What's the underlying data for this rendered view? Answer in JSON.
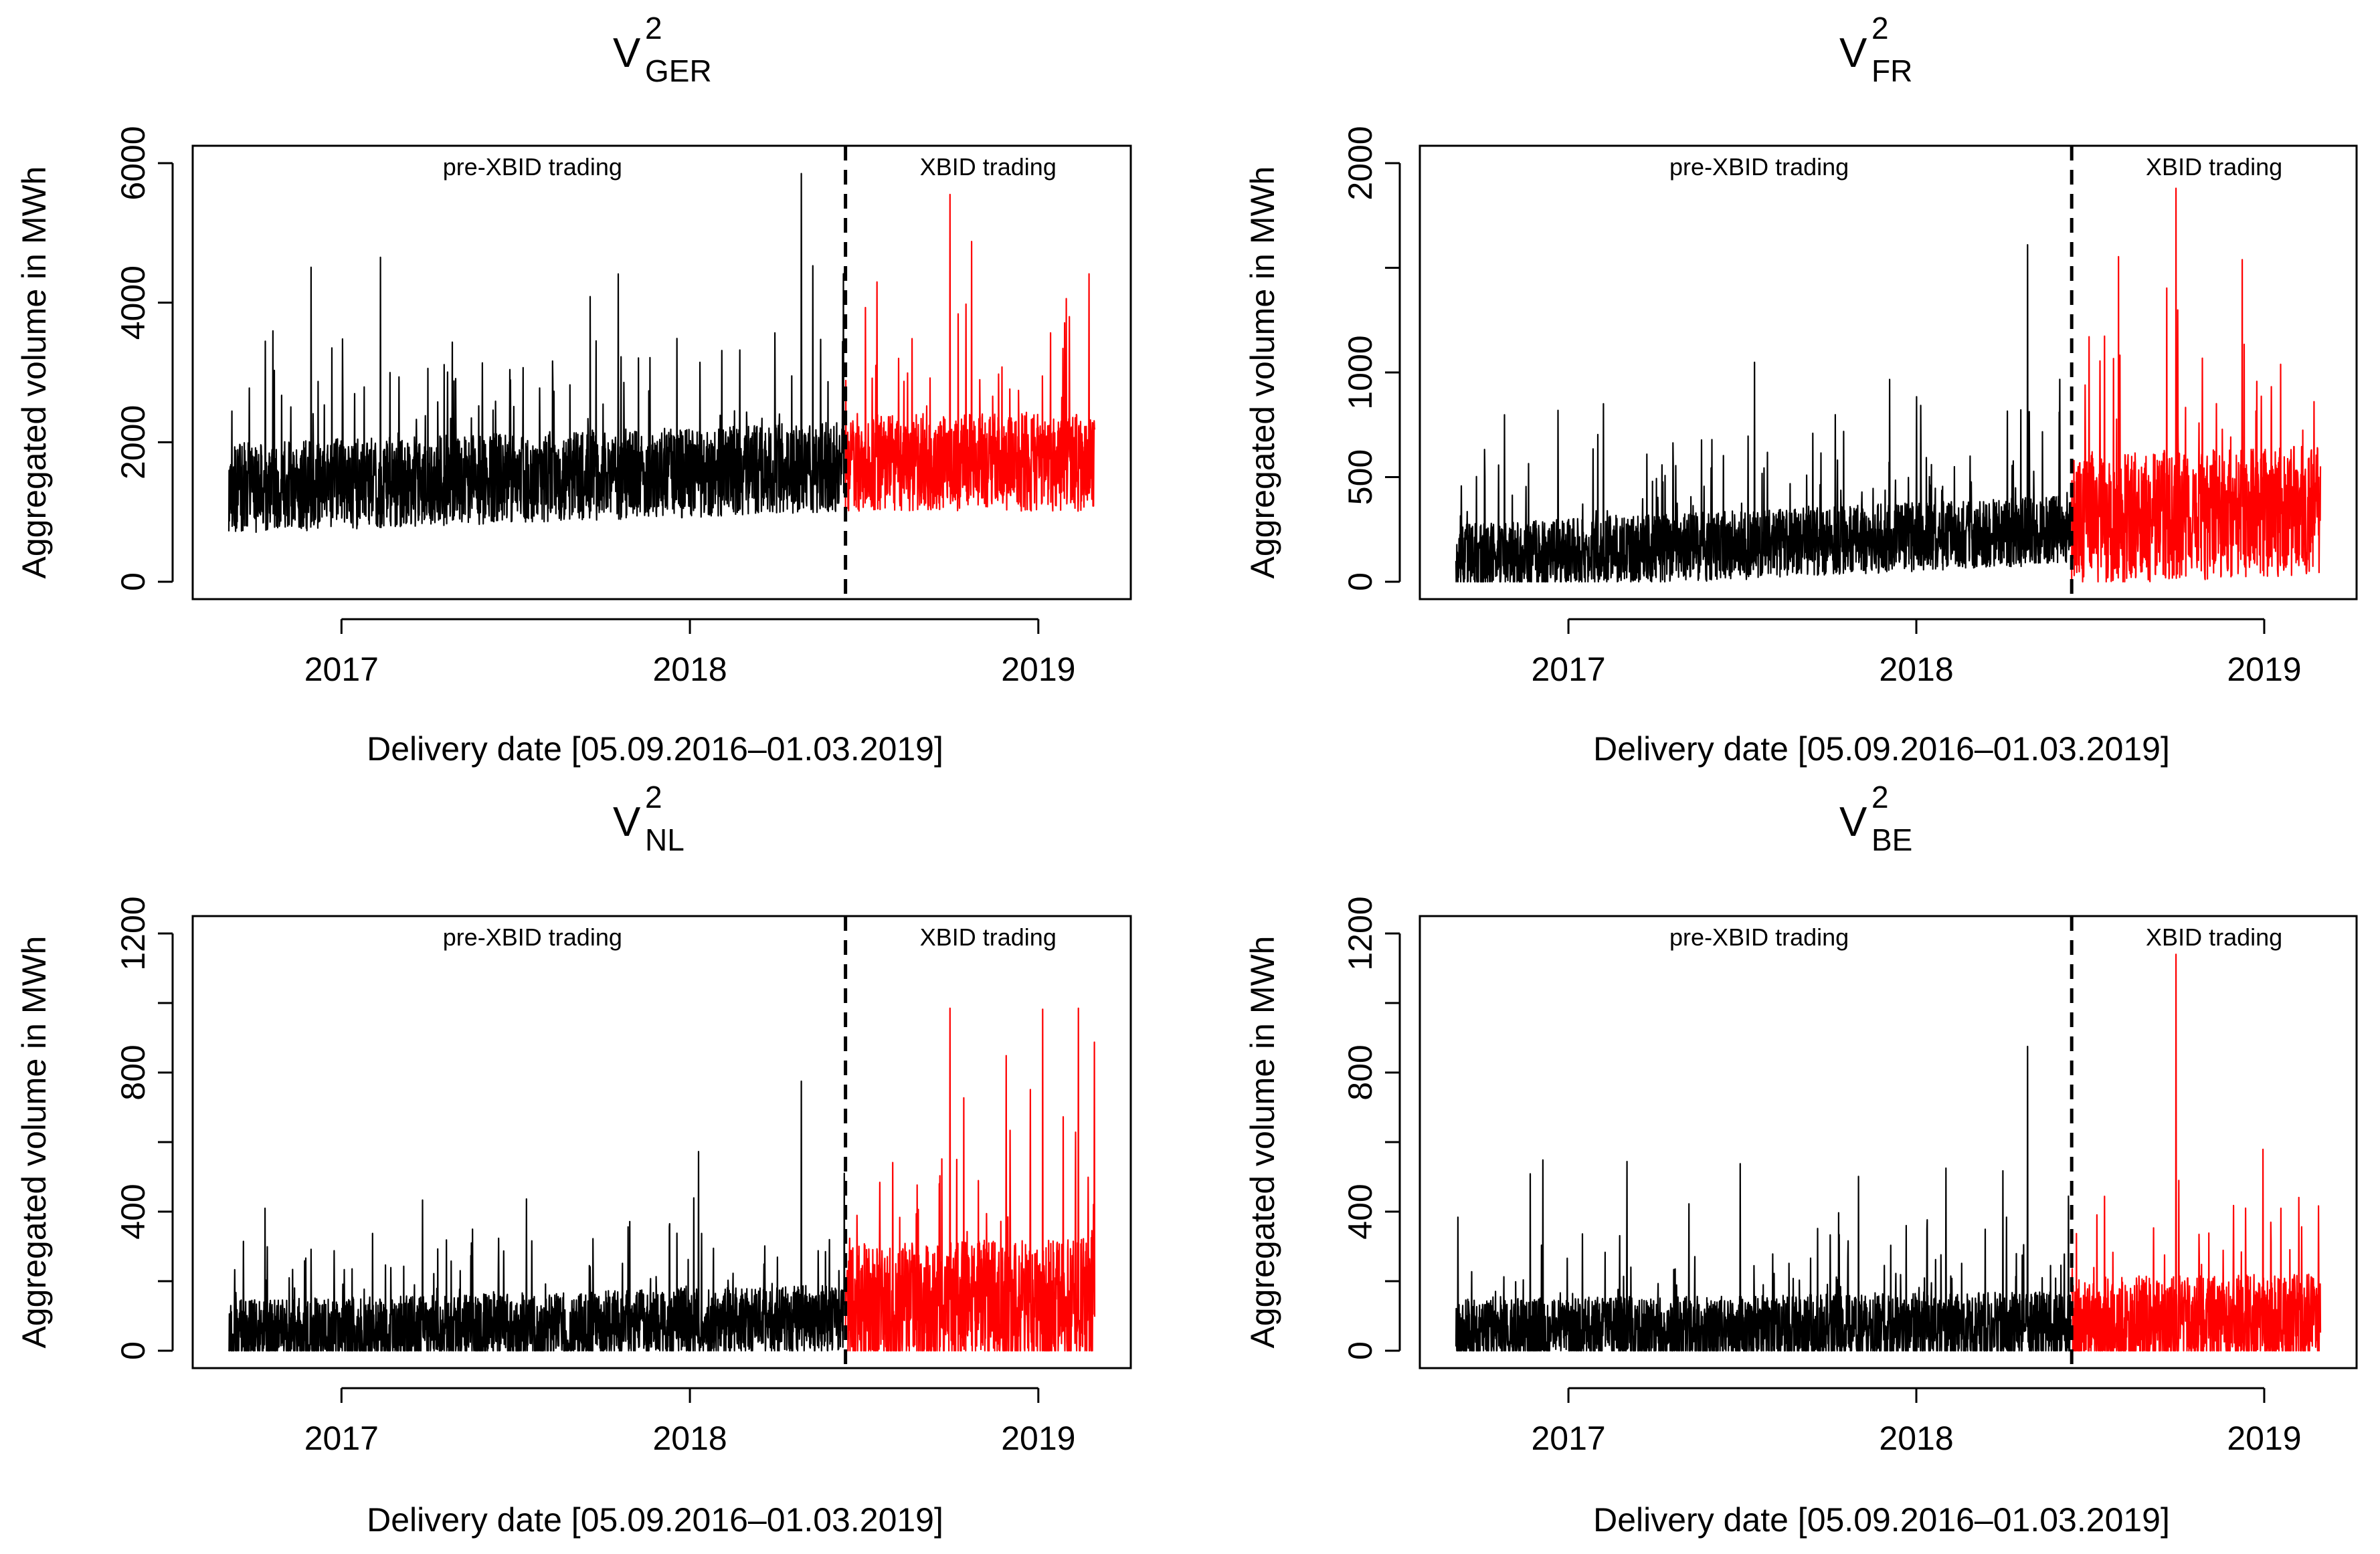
{
  "colors": {
    "pre_xbid": "#000000",
    "xbid": "#ff0000",
    "background": "#ffffff"
  },
  "chart_data": [
    {
      "type": "line",
      "title": "V",
      "title_superscript": "2",
      "title_subscript": "GER",
      "xlabel": "Delivery date [05.09.2016–01.03.2019]",
      "ylabel": "Aggregated volume in MWh",
      "xlim": [
        "2016-09-05",
        "2019-03-01"
      ],
      "ylim": [
        0,
        6000
      ],
      "yticks": [
        0,
        2000,
        4000,
        6000
      ],
      "yticklabels": [
        "0",
        "2000",
        "4000",
        "6000"
      ],
      "xticks": [
        "2017-01-01",
        "2018-01-01",
        "2019-01-01"
      ],
      "xticklabels": [
        "2017",
        "2018",
        "2019"
      ],
      "xbid_start": "2018-06-13",
      "annotations": {
        "pre": "pre-XBID trading",
        "post": "XBID trading"
      },
      "series": [
        {
          "name": "pre-XBID trading",
          "color": "#000000",
          "x_range": [
            "2016-09-05",
            "2018-06-12"
          ],
          "base_level": 1150,
          "trend_end": 1450,
          "spread": 1300,
          "peak": 5850
        },
        {
          "name": "XBID trading",
          "color": "#ff0000",
          "x_range": [
            "2018-06-13",
            "2019-03-01"
          ],
          "base_level": 1500,
          "trend_end": 1500,
          "spread": 1400,
          "peak": 5550
        }
      ],
      "grid": false
    },
    {
      "type": "line",
      "title": "V",
      "title_superscript": "2",
      "title_subscript": "FR",
      "xlabel": "Delivery date [05.09.2016–01.03.2019]",
      "ylabel": "Aggregated volume in MWh",
      "xlim": [
        "2016-09-05",
        "2019-03-01"
      ],
      "ylim": [
        0,
        2000
      ],
      "yticks": [
        0,
        500,
        1000,
        1500,
        2000
      ],
      "yticklabels": [
        "0",
        "500",
        "1000",
        "",
        "2000"
      ],
      "xticks": [
        "2017-01-01",
        "2018-01-01",
        "2019-01-01"
      ],
      "xticklabels": [
        "2017",
        "2018",
        "2019"
      ],
      "xbid_start": "2018-06-13",
      "annotations": {
        "pre": "pre-XBID trading",
        "post": "XBID trading"
      },
      "series": [
        {
          "name": "pre-XBID trading",
          "color": "#000000",
          "x_range": [
            "2016-09-05",
            "2018-06-12"
          ],
          "base_level": 60,
          "trend_end": 200,
          "spread": 330,
          "peak": 1610
        },
        {
          "name": "XBID trading",
          "color": "#ff0000",
          "x_range": [
            "2018-06-13",
            "2019-03-01"
          ],
          "base_level": 200,
          "trend_end": 250,
          "spread": 620,
          "peak": 1880
        }
      ],
      "grid": false
    },
    {
      "type": "line",
      "title": "V",
      "title_superscript": "2",
      "title_subscript": "NL",
      "xlabel": "Delivery date [05.09.2016–01.03.2019]",
      "ylabel": "Aggregated volume in MWh",
      "xlim": [
        "2016-09-05",
        "2019-03-01"
      ],
      "ylim": [
        0,
        1200
      ],
      "yticks": [
        0,
        200,
        400,
        600,
        800,
        1000,
        1200
      ],
      "yticklabels": [
        "0",
        "",
        "400",
        "",
        "800",
        "",
        "1200"
      ],
      "xticks": [
        "2017-01-01",
        "2018-01-01",
        "2019-01-01"
      ],
      "xticklabels": [
        "2017",
        "2018",
        "2019"
      ],
      "xbid_start": "2018-06-13",
      "annotations": {
        "pre": "pre-XBID trading",
        "post": "XBID trading"
      },
      "series": [
        {
          "name": "pre-XBID trading",
          "color": "#000000",
          "x_range": [
            "2016-09-05",
            "2018-06-12"
          ],
          "base_level": 15,
          "trend_end": 60,
          "spread": 200,
          "peak": 775
        },
        {
          "name": "XBID trading",
          "color": "#ff0000",
          "x_range": [
            "2018-06-13",
            "2019-03-01"
          ],
          "base_level": 60,
          "trend_end": 80,
          "spread": 380,
          "peak": 985
        }
      ],
      "grid": false
    },
    {
      "type": "line",
      "title": "V",
      "title_superscript": "2",
      "title_subscript": "BE",
      "xlabel": "Delivery date [05.09.2016–01.03.2019]",
      "ylabel": "Aggregated volume in MWh",
      "xlim": [
        "2016-09-05",
        "2019-03-01"
      ],
      "ylim": [
        0,
        1200
      ],
      "yticks": [
        0,
        200,
        400,
        600,
        800,
        1000,
        1200
      ],
      "yticklabels": [
        "0",
        "",
        "400",
        "",
        "800",
        "",
        "1200"
      ],
      "xticks": [
        "2017-01-01",
        "2018-01-01",
        "2019-01-01"
      ],
      "xticklabels": [
        "2017",
        "2018",
        "2019"
      ],
      "xbid_start": "2018-06-13",
      "annotations": {
        "pre": "pre-XBID trading",
        "post": "XBID trading"
      },
      "series": [
        {
          "name": "pre-XBID trading",
          "color": "#000000",
          "x_range": [
            "2016-09-05",
            "2018-06-12"
          ],
          "base_level": 20,
          "trend_end": 40,
          "spread": 200,
          "peak": 875
        },
        {
          "name": "XBID trading",
          "color": "#ff0000",
          "x_range": [
            "2018-06-13",
            "2019-03-01"
          ],
          "base_level": 30,
          "trend_end": 40,
          "spread": 280,
          "peak": 1140
        }
      ],
      "grid": false
    }
  ]
}
